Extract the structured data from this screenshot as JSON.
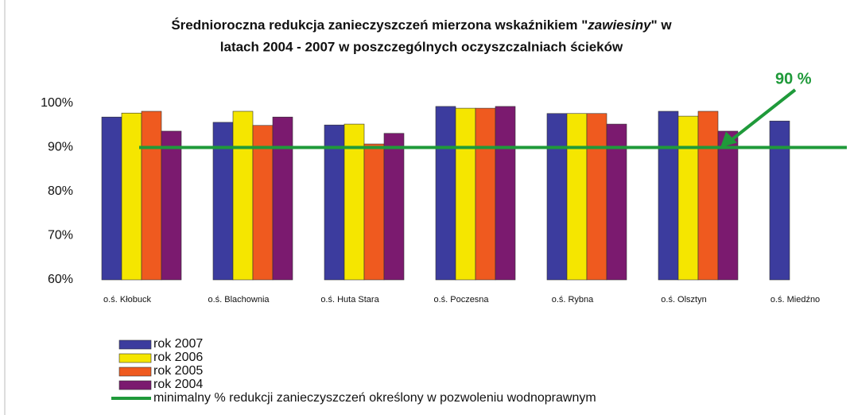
{
  "chart_data": {
    "type": "bar",
    "title": [
      "Średnioroczna redukcja zanieczyszczeń mierzona wskaźnikiem \"",
      "zawiesiny",
      "\" w",
      "latach 2004 - 2007 w poszczególnych oczyszczalniach ścieków"
    ],
    "categories": [
      "o.ś. Kłobuck",
      "o.ś. Blachownia",
      "o.ś. Huta Stara",
      "o.ś. Poczesna",
      "o.ś. Rybna",
      "o.ś. Olsztyn",
      "o.ś. Miedźno"
    ],
    "series": [
      {
        "name": "rok 2007",
        "color": "#3c3c9e",
        "values": [
          96.9,
          95.7,
          95.1,
          99.3,
          97.7,
          98.2,
          96.0
        ]
      },
      {
        "name": "rok 2006",
        "color": "#f5e600",
        "values": [
          97.8,
          98.2,
          95.3,
          98.9,
          97.7,
          97.1,
          null
        ]
      },
      {
        "name": "rok 2005",
        "color": "#ef5a1f",
        "values": [
          98.2,
          95.0,
          90.8,
          98.9,
          97.7,
          98.2,
          null
        ]
      },
      {
        "name": "rok 2004",
        "color": "#7b1a6f",
        "values": [
          93.7,
          96.9,
          93.2,
          99.3,
          95.3,
          93.7,
          null
        ]
      }
    ],
    "threshold": {
      "name": "minimalny % redukcji zanieczyszczeń określony w pozwoleniu wodnoprawnym",
      "value": 90,
      "color": "#1f9a3a"
    },
    "annotation": "90 %",
    "ylim": [
      60,
      100
    ],
    "yticks": [
      {
        "value": 60,
        "label": "60%"
      },
      {
        "value": 70,
        "label": "70%"
      },
      {
        "value": 80,
        "label": "80%"
      },
      {
        "value": 90,
        "label": "90%"
      },
      {
        "value": 100,
        "label": "100%"
      }
    ],
    "grid": false
  }
}
